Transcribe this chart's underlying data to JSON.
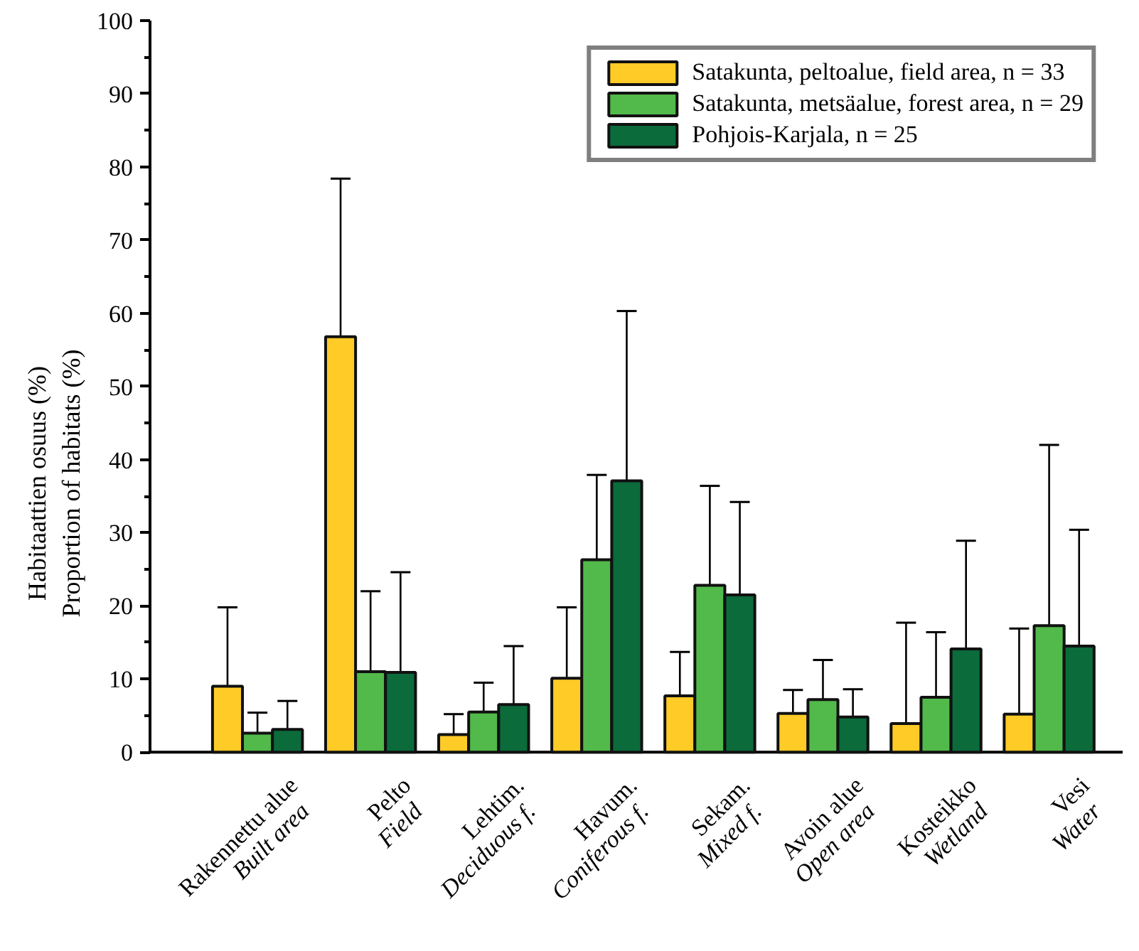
{
  "chart_data": {
    "type": "bar",
    "ylabel": "Habitaattien osuus (%)\nProportion of habitats (%)",
    "categories": [
      "Rakennettu alue\nBuilt area",
      "Pelto\nField",
      "Lehtim.\nDeciduous f.",
      "Havum.\nConiferous f.",
      "Sekam.\nMixed f.",
      "Avoin alue\nOpen area",
      "Kosteikko\nWetland",
      "Vesi\nWater"
    ],
    "series": [
      {
        "name": "Satakunta, peltoalue, field area, n = 33",
        "color": "#fecb27",
        "values": [
          9.0,
          56.8,
          2.4,
          10.1,
          7.7,
          5.3,
          3.9,
          5.2
        ],
        "errors": [
          [
            9.0,
            19.8
          ],
          [
            56.8,
            78.4
          ],
          [
            2.4,
            5.2
          ],
          [
            10.1,
            19.8
          ],
          [
            7.7,
            13.7
          ],
          [
            5.3,
            8.5
          ],
          [
            3.9,
            17.7
          ],
          [
            5.2,
            16.9
          ]
        ]
      },
      {
        "name": "Satakunta, metsäalue, forest area, n = 29",
        "color": "#52b94b",
        "values": [
          2.6,
          11.0,
          5.5,
          26.3,
          22.8,
          7.2,
          7.5,
          17.3
        ],
        "errors": [
          [
            2.6,
            5.4
          ],
          [
            11.0,
            22.0
          ],
          [
            5.5,
            9.5
          ],
          [
            26.3,
            37.9
          ],
          [
            22.8,
            36.4
          ],
          [
            7.2,
            12.6
          ],
          [
            7.5,
            16.4
          ],
          [
            17.3,
            42.0
          ]
        ]
      },
      {
        "name": "Pohjois-Karjala, n = 25",
        "color": "#0b6b3b",
        "values": [
          3.1,
          10.9,
          6.5,
          37.1,
          21.5,
          4.8,
          14.1,
          14.5
        ],
        "errors": [
          [
            3.1,
            7.0
          ],
          [
            10.9,
            24.6
          ],
          [
            6.5,
            14.5
          ],
          [
            37.1,
            60.3
          ],
          [
            21.5,
            34.2
          ],
          [
            4.8,
            8.6
          ],
          [
            14.1,
            28.9
          ],
          [
            14.5,
            30.4
          ]
        ]
      }
    ],
    "ylim": [
      0,
      100
    ],
    "yticks": [
      0,
      10,
      20,
      30,
      40,
      50,
      60,
      70,
      80,
      90,
      100
    ],
    "grid": false,
    "legend": "top right"
  }
}
